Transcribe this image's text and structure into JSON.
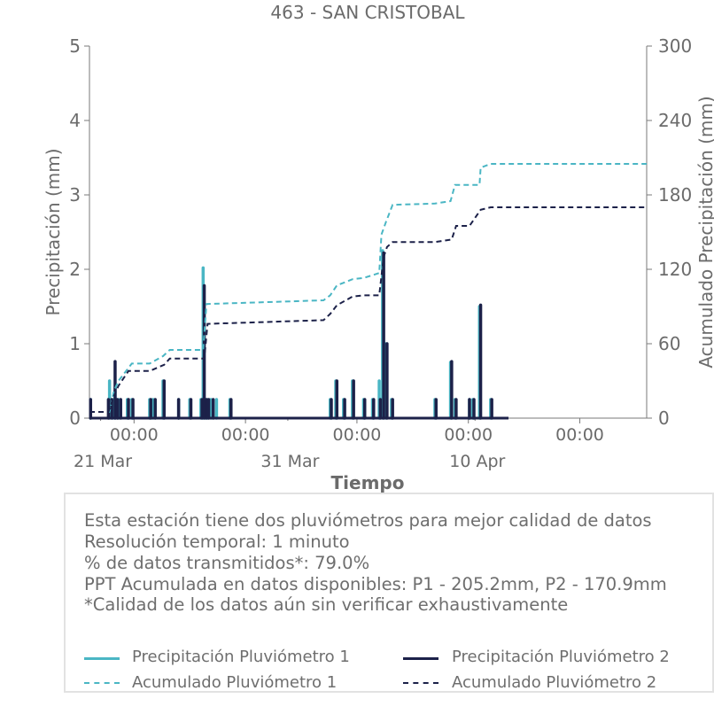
{
  "chart_data": {
    "type": "line",
    "title": "463 - SAN CRISTOBAL",
    "xlabel": "Tiempo",
    "ylabel": "Precipitación (mm)",
    "y2label": "Acumulado Precipitación (mm)",
    "ylim": [
      0,
      5
    ],
    "y2lim": [
      0,
      300
    ],
    "yticks": [
      "0",
      "1",
      "2",
      "3",
      "4",
      "5"
    ],
    "y2ticks": [
      "0",
      "60",
      "120",
      "180",
      "240",
      "300"
    ],
    "xlim_days": [
      0,
      25
    ],
    "xticks": [
      {
        "day": 2,
        "label": "00:00"
      },
      {
        "day": 7,
        "label": "00:00"
      },
      {
        "day": 12,
        "label": "00:00"
      },
      {
        "day": 17,
        "label": "00:00"
      },
      {
        "day": 22,
        "label": "00:00"
      }
    ],
    "date_labels": [
      {
        "day": 0.6,
        "label": "21 Mar"
      },
      {
        "day": 9.0,
        "label": "31 Mar"
      },
      {
        "day": 17.4,
        "label": "10 Apr"
      }
    ],
    "grid": false,
    "series": [
      {
        "name": "Precipitación Pluviómetro 1",
        "axis": "left",
        "style": "bars",
        "color": "#4ab6c4",
        "x": [
          0.05,
          0.9,
          1.05,
          1.15,
          1.3,
          1.7,
          1.9,
          2.7,
          2.85,
          3.3,
          4.0,
          4.5,
          5.0,
          5.1,
          5.2,
          5.3,
          5.45,
          5.7,
          6.3,
          10.8,
          11.05,
          11.4,
          11.8,
          12.3,
          12.7,
          13.0,
          13.15,
          13.3,
          13.55,
          15.5,
          16.2,
          16.4,
          17.05,
          17.2,
          17.5,
          18.0
        ],
        "values": [
          0.25,
          0.5,
          0.25,
          0.4,
          0.25,
          0.25,
          0.25,
          0.25,
          0.25,
          0.5,
          0.25,
          0.25,
          0.25,
          2.02,
          0.25,
          0.25,
          0.25,
          0.25,
          0.25,
          0.25,
          0.5,
          0.25,
          0.5,
          0.25,
          0.25,
          0.5,
          2.25,
          1.0,
          0.25,
          0.25,
          0.75,
          0.25,
          0.25,
          0.25,
          1.5,
          0.25
        ]
      },
      {
        "name": "Precipitación Pluviómetro 2",
        "axis": "left",
        "style": "bars",
        "color": "#1c2149",
        "x": [
          0.05,
          0.85,
          1.0,
          1.15,
          1.25,
          1.4,
          1.75,
          1.95,
          2.75,
          2.95,
          3.35,
          4.0,
          4.55,
          5.05,
          5.15,
          5.25,
          5.35,
          5.55,
          6.35,
          10.85,
          11.1,
          11.45,
          11.85,
          12.35,
          12.75,
          13.05,
          13.2,
          13.35,
          13.6,
          15.55,
          16.25,
          16.45,
          17.05,
          17.25,
          17.55,
          18.05
        ],
        "values": [
          0.25,
          0.25,
          0.25,
          0.76,
          0.25,
          0.25,
          0.25,
          0.25,
          0.25,
          0.25,
          0.5,
          0.25,
          0.25,
          0.25,
          1.78,
          0.25,
          0.25,
          0.25,
          0.25,
          0.25,
          0.5,
          0.25,
          0.5,
          0.25,
          0.25,
          0.25,
          2.22,
          1.0,
          0.25,
          0.25,
          0.76,
          0.25,
          0.25,
          0.25,
          1.52,
          0.25
        ]
      },
      {
        "name": "Acumulado Pluviómetro 1",
        "axis": "right",
        "style": "dashed-step",
        "color": "#4ab6c4",
        "x": [
          0.0,
          0.9,
          1.1,
          1.3,
          1.9,
          2.7,
          3.3,
          3.6,
          5.1,
          5.25,
          10.5,
          10.8,
          11.1,
          11.8,
          12.3,
          13.0,
          13.1,
          13.3,
          13.6,
          15.5,
          16.2,
          16.4,
          17.05,
          17.5,
          17.55,
          18.0,
          25.0
        ],
        "values": [
          5,
          5,
          22,
          30,
          44,
          44,
          50,
          55,
          55,
          92,
          95,
          99,
          107,
          112,
          113,
          117,
          148,
          158,
          172,
          173,
          175,
          188,
          188,
          188,
          202,
          205,
          205
        ]
      },
      {
        "name": "Acumulado Pluviómetro 2",
        "axis": "right",
        "style": "dashed-step",
        "color": "#1c2149",
        "x": [
          0.0,
          0.85,
          1.1,
          1.3,
          1.75,
          2.7,
          3.35,
          3.6,
          5.15,
          5.3,
          10.5,
          10.8,
          11.1,
          11.8,
          12.3,
          13.0,
          13.2,
          13.35,
          13.6,
          15.5,
          16.25,
          16.45,
          17.05,
          17.55,
          18.0,
          25.0
        ],
        "values": [
          5,
          5,
          18,
          26,
          38,
          38,
          43,
          48,
          48,
          76,
          79,
          84,
          91,
          98,
          99,
          99,
          130,
          138,
          142,
          142,
          144,
          155,
          155,
          168,
          170,
          170
        ]
      }
    ]
  },
  "info": {
    "line1": "Esta estación tiene dos pluviómetros para mejor calidad de datos",
    "line2": "Resolución temporal: 1 minuto",
    "line3": "% de datos transmitidos*: 79.0%",
    "line4": "PPT Acumulada en datos disponibles: P1 - 205.2mm, P2 - 170.9mm",
    "line5": "*Calidad de los datos aún sin verificar exhaustivamente"
  },
  "legend": [
    {
      "label": "Precipitación Pluviómetro 1",
      "color": "#4ab6c4",
      "dashed": false
    },
    {
      "label": "Precipitación Pluviómetro 2",
      "color": "#1c2149",
      "dashed": false
    },
    {
      "label": "Acumulado Pluviómetro 1",
      "color": "#4ab6c4",
      "dashed": true
    },
    {
      "label": "Acumulado Pluviómetro 2",
      "color": "#1c2149",
      "dashed": true
    }
  ]
}
